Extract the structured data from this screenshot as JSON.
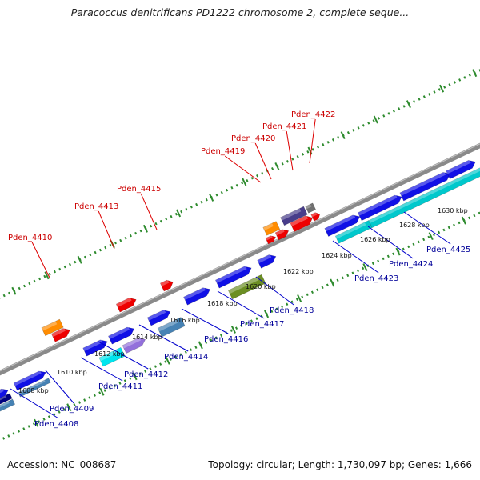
{
  "title": "Paracoccus denitrificans PD1222 chromosome 2, complete seque...",
  "footer": {
    "accession": "Accession: NC_008687",
    "summary": "Topology: circular; Length: 1,730,097 bp; Genes: 1,666"
  },
  "colors": {
    "backbone": "#8a8a8a",
    "ruler_dots": "#2e8b2e",
    "label_forward": "#cc0000",
    "label_reverse": "#000099",
    "leader_forward": "#dd0000",
    "leader_reverse": "#0000cc"
  },
  "scale_labels": [
    "1608 kbp",
    "1610 kbp",
    "1612 kbp",
    "1614 kbp",
    "1616 kbp",
    "1618 kbp",
    "1620 kbp",
    "1622 kbp",
    "1624 kbp",
    "1626 kbp",
    "1628 kbp",
    "1630 kbp"
  ],
  "gene_labels": {
    "forward": [
      "Pden_4410",
      "Pden_4413",
      "Pden_4415",
      "Pden_4419",
      "Pden_4420",
      "Pden_4421",
      "Pden_4422"
    ],
    "reverse": [
      "Pden_4408",
      "Pden_4409",
      "Pden_4411",
      "Pden_4412",
      "Pden_4414",
      "Pden_4416",
      "Pden_4417",
      "Pden_4418",
      "Pden_4423",
      "Pden_4424",
      "Pden_4425"
    ]
  }
}
